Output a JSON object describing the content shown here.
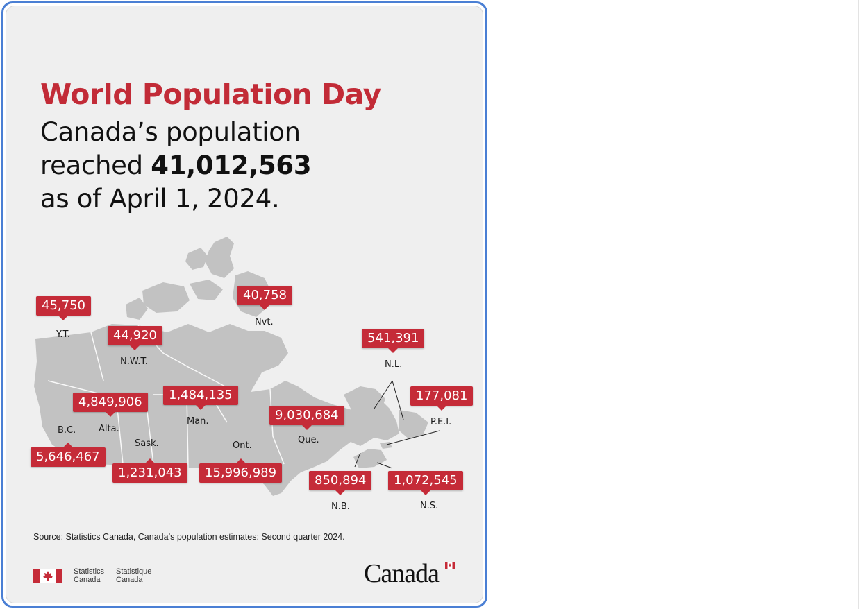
{
  "poster": {
    "title": "World Population Day",
    "headline_line1": "Canada’s population",
    "headline_line2_prefix": "reached ",
    "headline_total": "41,012,563",
    "headline_line3": "as of April 1, 2024.",
    "source": "Source: Statistics Canada, Canada’s population estimates: Second quarter 2024.",
    "agency_en": [
      "Statistics",
      "Canada"
    ],
    "agency_fr": [
      "Statistique",
      "Canada"
    ],
    "wordmark": "Canada",
    "accent_color": "#c52b38",
    "map_color": "#c2c2c2"
  },
  "regions": [
    {
      "abbr": "Y.T.",
      "population": "45,750"
    },
    {
      "abbr": "N.W.T.",
      "population": "44,920"
    },
    {
      "abbr": "Nvt.",
      "population": "40,758"
    },
    {
      "abbr": "B.C.",
      "population": "5,646,467"
    },
    {
      "abbr": "Alta.",
      "population": "4,849,906"
    },
    {
      "abbr": "Sask.",
      "population": "1,231,043"
    },
    {
      "abbr": "Man.",
      "population": "1,484,135"
    },
    {
      "abbr": "Ont.",
      "population": "15,996,989"
    },
    {
      "abbr": "Que.",
      "population": "9,030,684"
    },
    {
      "abbr": "N.L.",
      "population": "541,391"
    },
    {
      "abbr": "P.E.I.",
      "population": "177,081"
    },
    {
      "abbr": "N.B.",
      "population": "850,894"
    },
    {
      "abbr": "N.S.",
      "population": "1,072,545"
    }
  ]
}
